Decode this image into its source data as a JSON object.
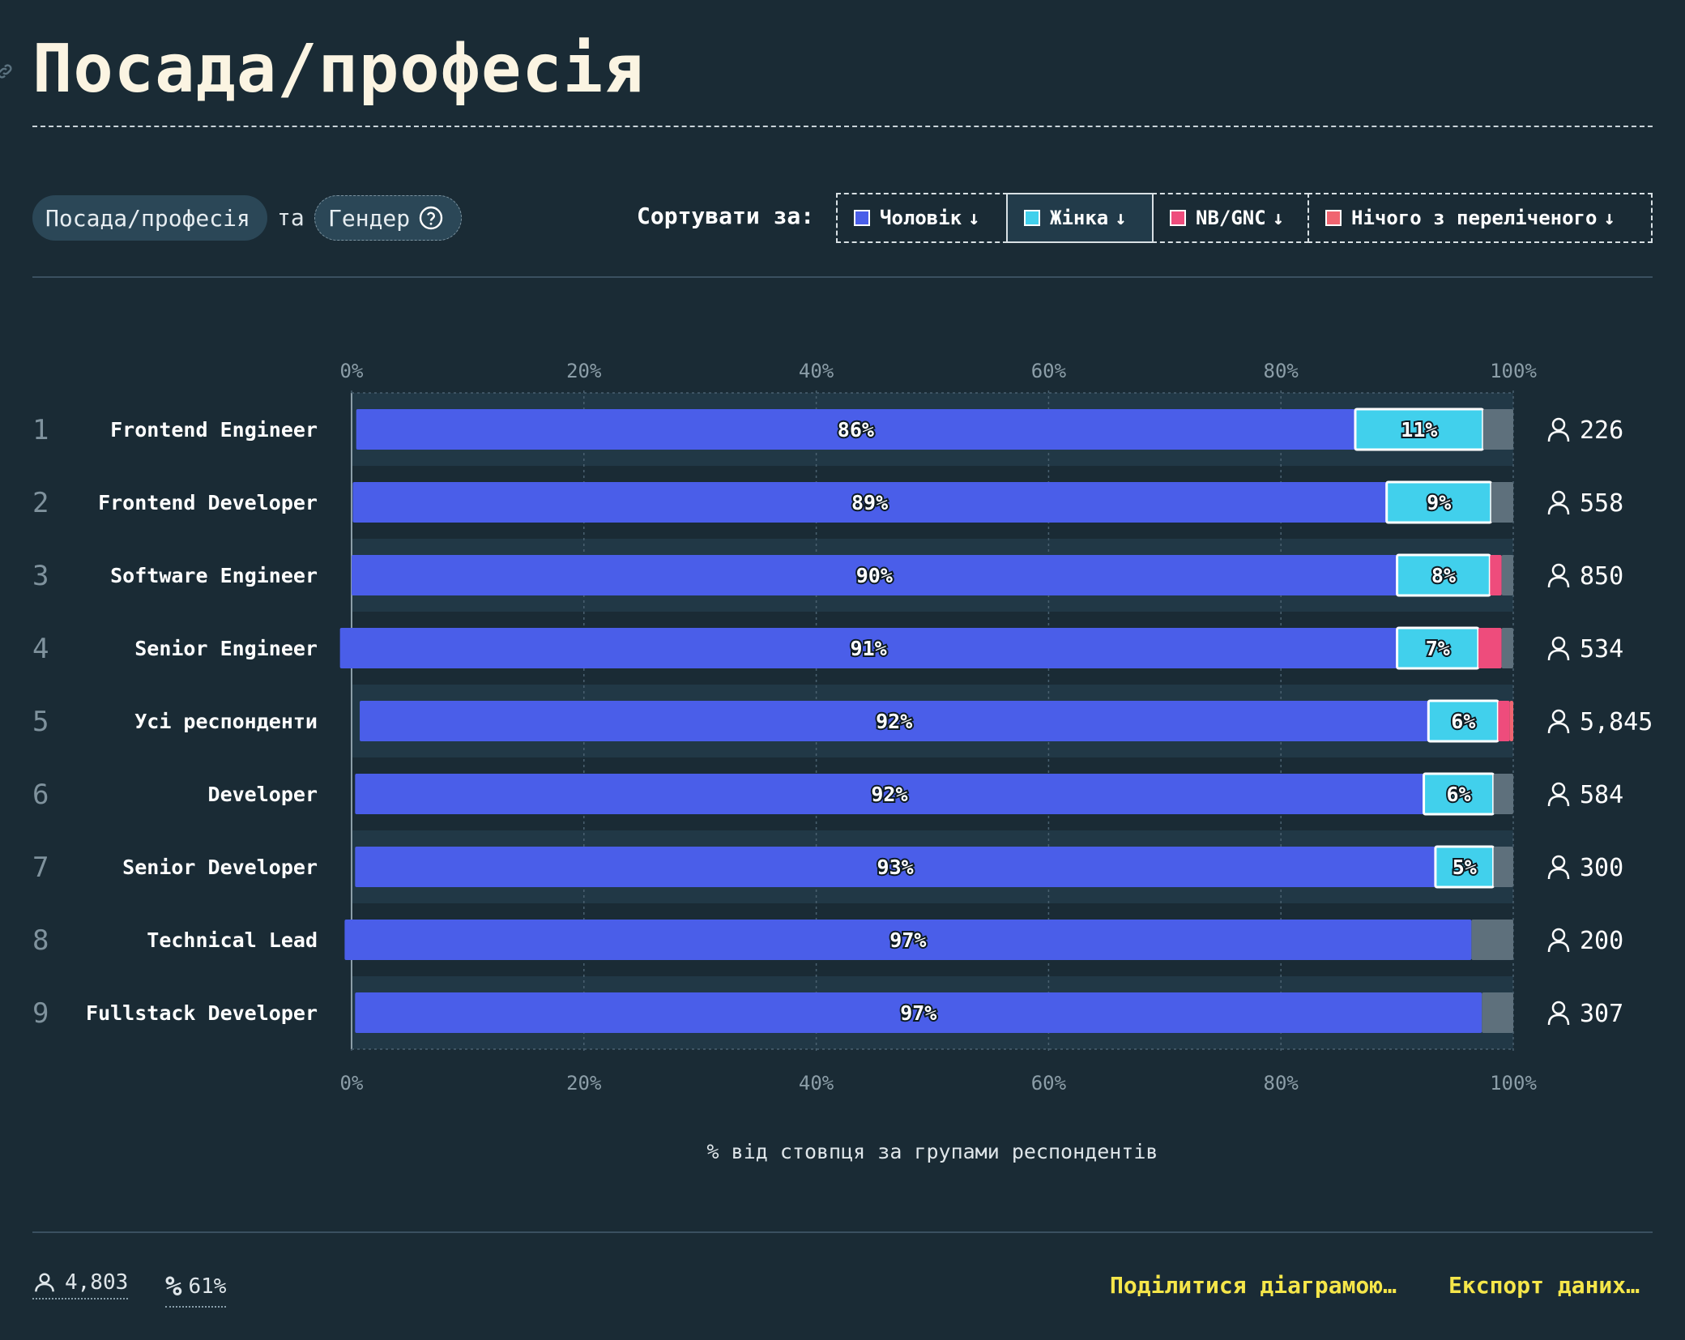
{
  "title": "Посада/професія",
  "filters": {
    "role": "Посада/професія",
    "conjunction": "та",
    "gender": "Гендер"
  },
  "sort": {
    "label": "Сортувати за:",
    "buttons": [
      {
        "label": "Чоловік",
        "color": "#4a5ee9",
        "active": false
      },
      {
        "label": "Жінка",
        "color": "#41d0ec",
        "active": true
      },
      {
        "label": "NB/GNC",
        "color": "#ee4c7c",
        "active": false
      },
      {
        "label": "Нічого з переліченого",
        "color": "#f06470",
        "active": false
      }
    ]
  },
  "colors": {
    "man": "#4a5ee9",
    "woman": "#41d0ec",
    "nb": "#ee4c7c",
    "none": "#f06470",
    "other": "#5e707c",
    "background": "#1a2b35"
  },
  "chart_data": {
    "type": "bar",
    "orientation": "horizontal-stacked",
    "ticks": [
      "0%",
      "20%",
      "40%",
      "60%",
      "80%",
      "100%"
    ],
    "xlim": [
      0,
      100
    ],
    "xlabel": "% від стовпця за групами респондентів",
    "categories": [
      "Frontend Engineer",
      "Frontend Developer",
      "Software Engineer",
      "Senior Engineer",
      "Усі респонденти",
      "Developer",
      "Senior Developer",
      "Technical Lead",
      "Fullstack Developer"
    ],
    "ranks": [
      "1",
      "2",
      "3",
      "4",
      "5",
      "6",
      "7",
      "8",
      "9"
    ],
    "counts": [
      "226",
      "558",
      "850",
      "534",
      "5,845",
      "584",
      "300",
      "200",
      "307"
    ],
    "series": [
      {
        "name": "Чоловік",
        "values": [
          86,
          89,
          90,
          91,
          92,
          92,
          93,
          97,
          97
        ],
        "labels": [
          "86%",
          "89%",
          "90%",
          "91%",
          "92%",
          "92%",
          "93%",
          "97%",
          "97%"
        ]
      },
      {
        "name": "Жінка",
        "values": [
          11,
          9,
          8,
          7,
          6,
          6,
          5,
          0,
          0
        ],
        "labels": [
          "11%",
          "9%",
          "8%",
          "7%",
          "6%",
          "6%",
          "5%",
          "",
          ""
        ]
      },
      {
        "name": "NB/GNC",
        "values": [
          0,
          0,
          1,
          2,
          1,
          0,
          0,
          0,
          0
        ]
      },
      {
        "name": "Нічого з переліченого",
        "values": [
          0,
          0,
          0,
          0,
          0.3,
          0,
          0,
          0,
          0
        ]
      }
    ],
    "other_values": [
      2.6,
      1.9,
      1.0,
      1.0,
      0,
      1.7,
      1.7,
      3.6,
      2.7
    ]
  },
  "footer": {
    "respondents": "4,803",
    "percent": "61%",
    "share": "Поділитися діаграмою…",
    "export": "Експорт даних…"
  }
}
